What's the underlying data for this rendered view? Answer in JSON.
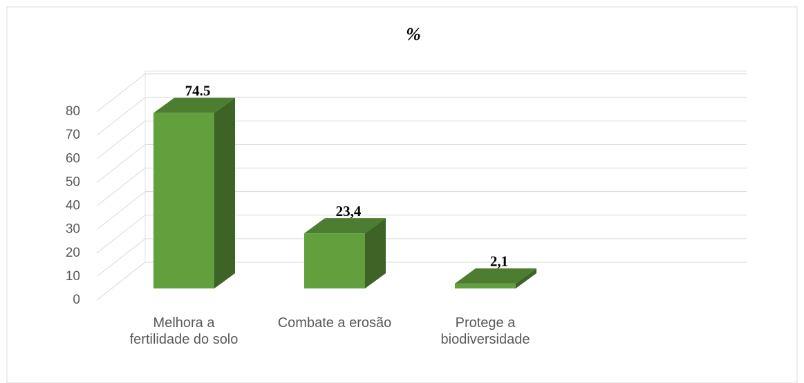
{
  "chart_data": {
    "type": "bar",
    "title": "%",
    "categories": [
      "Melhora a fertilidade do solo",
      "Combate a erosão",
      "Protege a biodiversidade"
    ],
    "values": [
      74.5,
      23.4,
      2.1
    ],
    "value_labels": [
      "74.5",
      "23,4",
      "2,1"
    ],
    "color": "#62a03d",
    "ylim": [
      0,
      80
    ],
    "yticks": [
      0,
      10,
      20,
      30,
      40,
      50,
      60,
      70,
      80
    ],
    "grid": true
  }
}
